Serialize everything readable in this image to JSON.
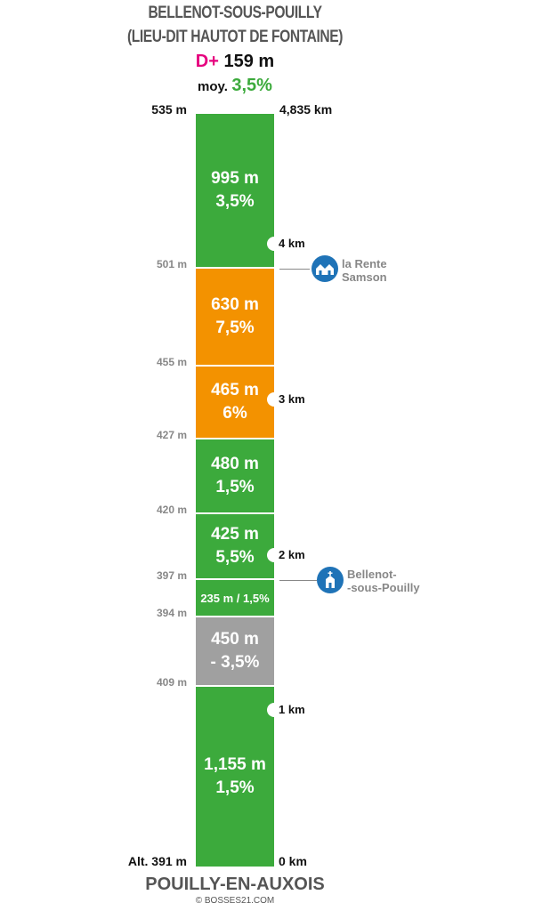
{
  "header": {
    "title_line1": "BELLENOT-SOUS-POUILLY",
    "title_line2": "(LIEU-DIT HAUTOT DE FONTAINE)",
    "dplus_label": "D+",
    "dplus_value": "159 m",
    "moy_label": "moy.",
    "moy_value": "3,5%"
  },
  "top": {
    "altitude": "535 m",
    "distance": "4,835 km"
  },
  "bottom": {
    "altitude": "Alt. 391 m",
    "distance": "0 km",
    "place": "POUILLY-EN-AUXOIS"
  },
  "colors": {
    "green": "#3caa3c",
    "orange": "#f39200",
    "gray": "#a0a0a0",
    "accent": "#e6007e",
    "poi": "#1f73b7"
  },
  "segments": [
    {
      "length": "995 m",
      "grade": "3,5%",
      "color": "green"
    },
    {
      "length": "630 m",
      "grade": "7,5%",
      "color": "orange"
    },
    {
      "length": "465 m",
      "grade": "6%",
      "color": "orange"
    },
    {
      "length": "480 m",
      "grade": "1,5%",
      "color": "green"
    },
    {
      "length": "425 m",
      "grade": "5,5%",
      "color": "green"
    },
    {
      "label": "235 m / 1,5%",
      "color": "green"
    },
    {
      "length": "450 m",
      "grade": "- 3,5%",
      "color": "gray"
    },
    {
      "length": "1,155 m",
      "grade": "1,5%",
      "color": "green"
    }
  ],
  "altitudes": [
    "501 m",
    "455 m",
    "427 m",
    "420 m",
    "397 m",
    "394 m",
    "409 m"
  ],
  "km_markers": [
    "4 km",
    "3 km",
    "2 km",
    "1 km"
  ],
  "pois": [
    {
      "name_line1": "la Rente",
      "name_line2": "Samson",
      "icon": "houses-icon"
    },
    {
      "name_line1": "Bellenot-",
      "name_line2": "-sous-Pouilly",
      "icon": "church-icon"
    }
  ],
  "copyright": "© BOSSES21.COM"
}
